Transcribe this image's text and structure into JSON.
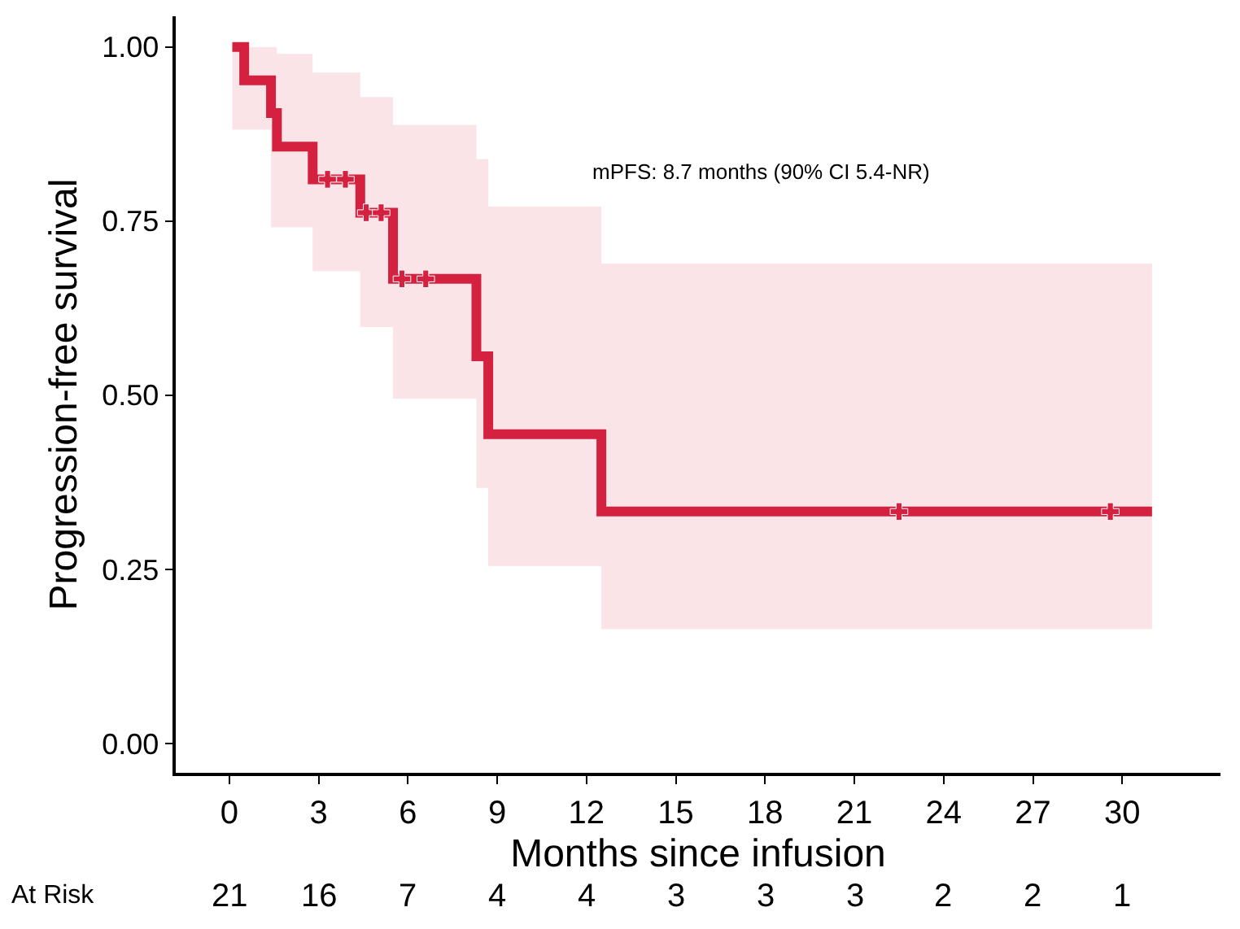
{
  "chart_data": {
    "type": "step",
    "xlabel": "Months since infusion",
    "ylabel": "Progression-free survival",
    "xlim": [
      -1.8,
      33.3
    ],
    "xticks": [
      0,
      3,
      6,
      9,
      12,
      15,
      18,
      21,
      24,
      27,
      30
    ],
    "ylim": [
      -0.042,
      1.044
    ],
    "yticks": [
      {
        "value": 0,
        "label": "0.00"
      },
      {
        "value": 0.25,
        "label": "0.25"
      },
      {
        "value": 0.5,
        "label": "0.50"
      },
      {
        "value": 0.75,
        "label": "0.75"
      },
      {
        "value": 1,
        "label": "1.00"
      }
    ],
    "grid": false,
    "line_style": "solid",
    "series": [
      {
        "color": "#d42140",
        "x": [
          0.1,
          0.5,
          1.4,
          1.6,
          2.8,
          4.4,
          5.5,
          8.3,
          8.7,
          12.5,
          31
        ],
        "values": [
          1,
          0.952,
          0.905,
          0.857,
          0.81,
          0.762,
          0.667,
          0.556,
          0.444,
          0.333,
          0.333
        ],
        "lower": [
          0.881,
          0.881,
          0.741,
          0.741,
          0.678,
          0.598,
          0.495,
          0.367,
          0.255,
          0.164,
          0.164
        ],
        "upper": [
          1,
          1,
          1,
          0.99,
          0.963,
          0.928,
          0.888,
          0.839,
          0.771,
          0.689,
          0.689
        ]
      },
      {
        "type": "scatter",
        "marker": "cross",
        "color": "#d42140",
        "x": [
          3.3,
          3.9,
          4.6,
          5.1,
          5.8,
          6.6,
          22.5,
          29.6
        ],
        "values": [
          0.81,
          0.81,
          0.762,
          0.762,
          0.667,
          0.667,
          0.333,
          0.333
        ]
      }
    ],
    "annotations": [
      "mPFS: 8.7 months (90% CI 5.4-NR)",
      "At Risk",
      "21",
      "16",
      "7",
      "4",
      "4",
      "3",
      "3",
      "3",
      "2",
      "2",
      "1"
    ]
  }
}
